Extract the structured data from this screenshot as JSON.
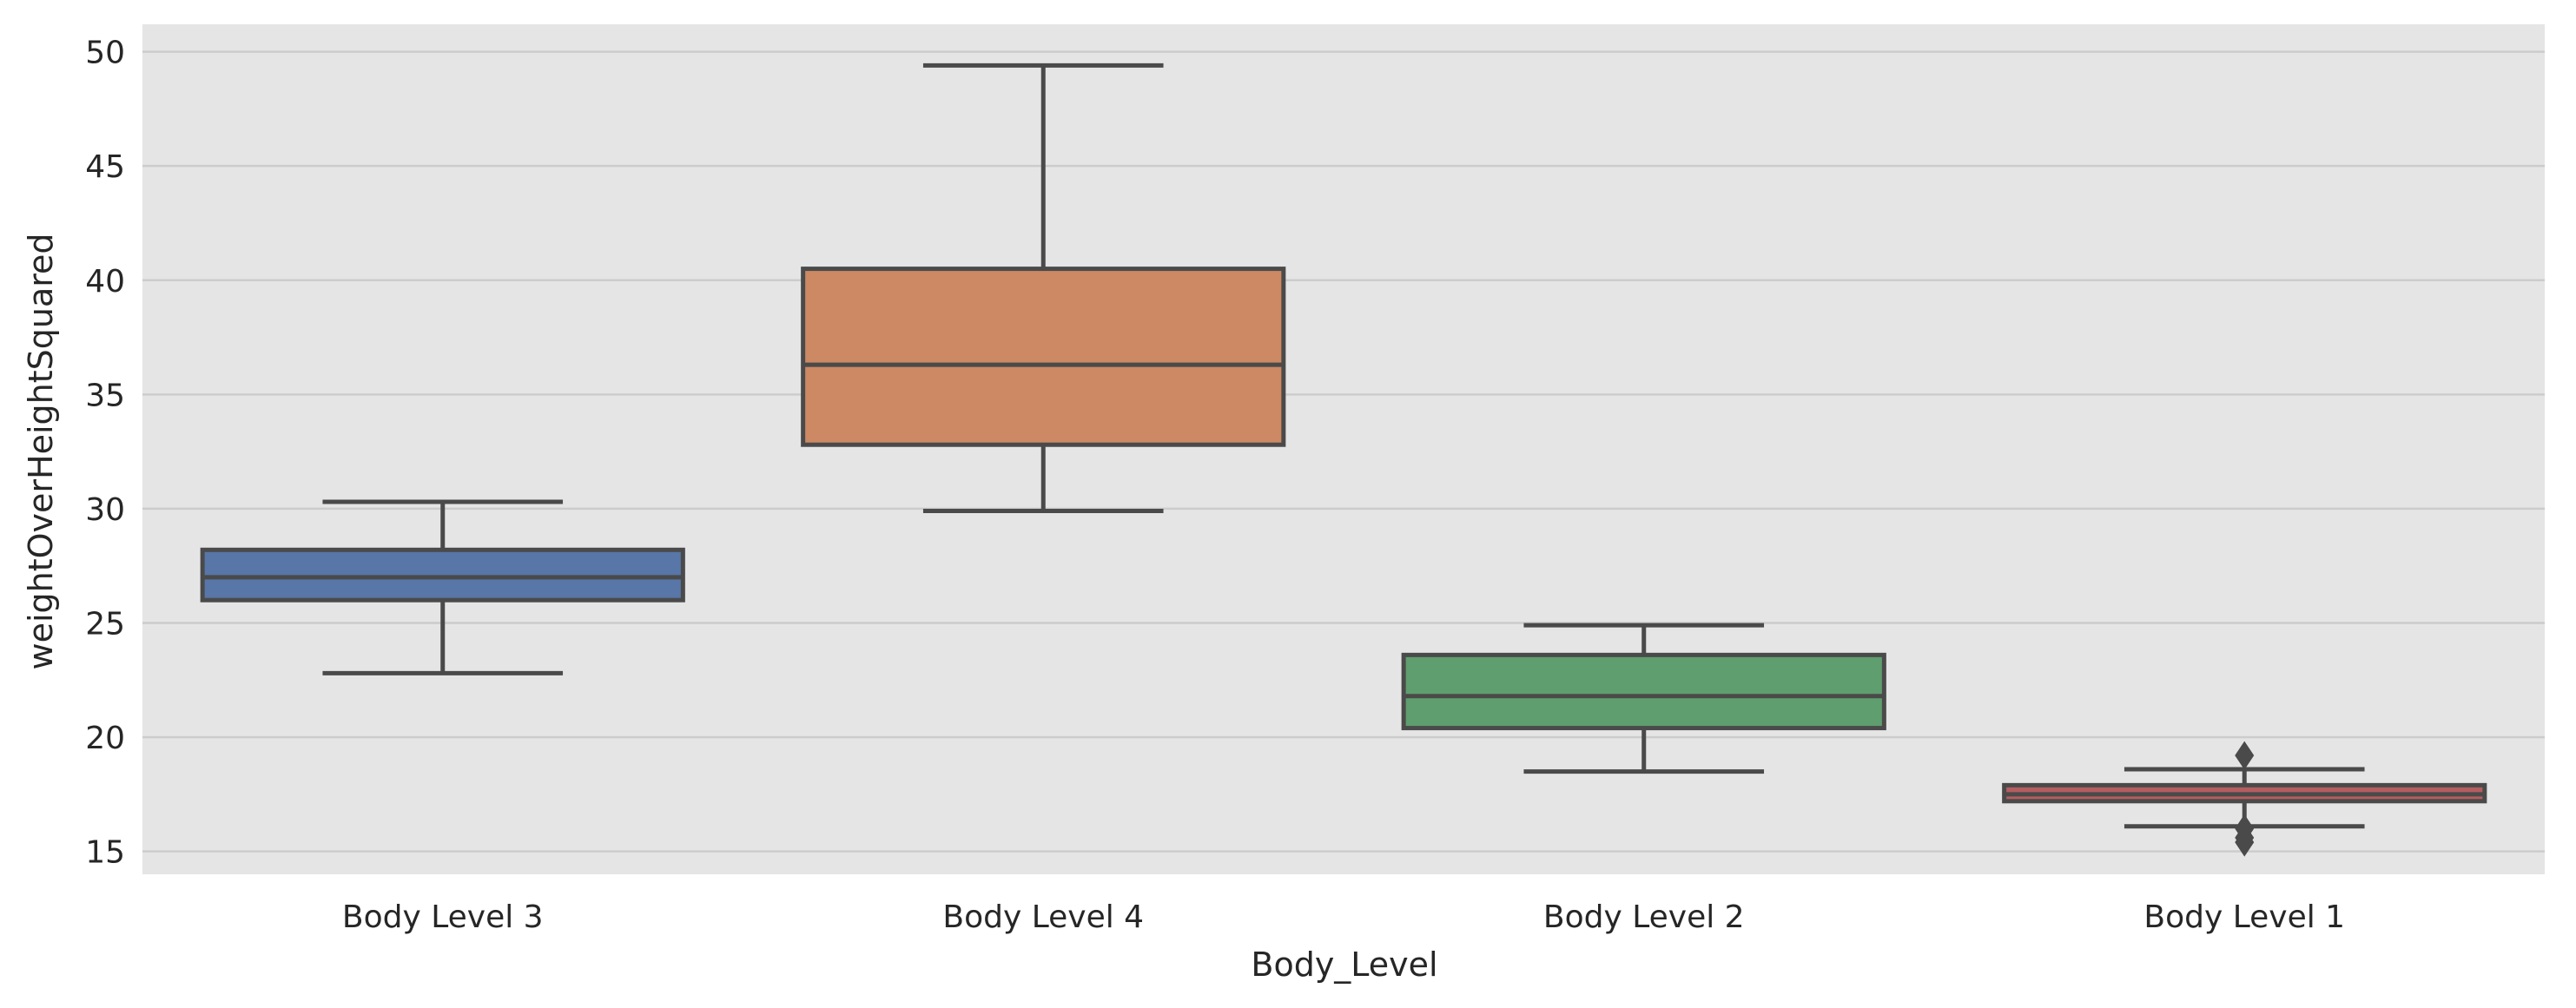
{
  "chart_data": {
    "type": "box",
    "xlabel": "Body_Level",
    "ylabel": "weightOverHeightSquared",
    "ylim": [
      14,
      51.2
    ],
    "yticks": [
      15,
      20,
      25,
      30,
      35,
      40,
      45,
      50
    ],
    "grid": true,
    "background": "#e5e5e5",
    "gridColor": "#cccccc",
    "lineColor": "#4a4a4a",
    "categories": [
      "Body Level 3",
      "Body Level 4",
      "Body Level 2",
      "Body Level 1"
    ],
    "boxes": [
      {
        "category": "Body Level 3",
        "whisker_low": 22.8,
        "q1": 26.0,
        "median": 27.0,
        "q3": 28.2,
        "whisker_high": 30.3,
        "outliers": [],
        "color": "#5876a7"
      },
      {
        "category": "Body Level 4",
        "whisker_low": 29.9,
        "q1": 32.8,
        "median": 36.3,
        "q3": 40.5,
        "whisker_high": 49.4,
        "outliers": [],
        "color": "#cc8963"
      },
      {
        "category": "Body Level 2",
        "whisker_low": 18.5,
        "q1": 20.4,
        "median": 21.8,
        "q3": 23.6,
        "whisker_high": 24.9,
        "outliers": [],
        "color": "#5f9e6e"
      },
      {
        "category": "Body Level 1",
        "whisker_low": 16.1,
        "q1": 17.2,
        "median": 17.5,
        "q3": 17.9,
        "whisker_high": 18.6,
        "outliers": [
          19.2,
          16.0,
          15.6,
          15.4
        ],
        "color": "#b55d60"
      }
    ]
  }
}
